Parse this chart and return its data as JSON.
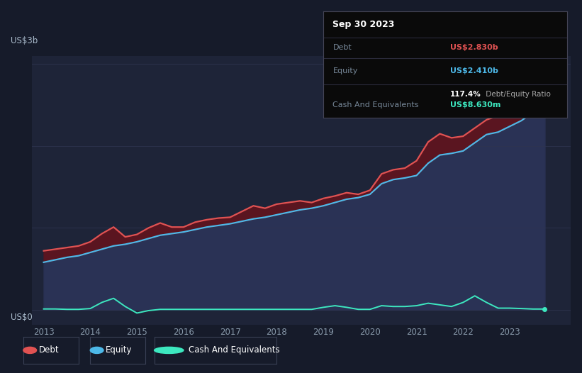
{
  "bg_color": "#161b2a",
  "plot_bg_color": "#1e2438",
  "grid_color": "#2e3450",
  "y_label": "US$3b",
  "y_label_zero": "US$0",
  "x_ticks": [
    "2013",
    "2014",
    "2015",
    "2016",
    "2017",
    "2018",
    "2019",
    "2020",
    "2021",
    "2022",
    "2023"
  ],
  "debt_color": "#e05252",
  "equity_color": "#4db8e8",
  "cash_color": "#3de8c0",
  "debt_fill_color": "#5a1520",
  "equity_fill_color": "#2a3255",
  "tooltip_title": "Sep 30 2023",
  "tooltip_debt_label": "Debt",
  "tooltip_debt": "US$2.830b",
  "tooltip_equity_label": "Equity",
  "tooltip_equity": "US$2.410b",
  "tooltip_ratio": "117.4%",
  "tooltip_ratio_text": " Debt/Equity Ratio",
  "tooltip_cash_label": "Cash And Equivalents",
  "tooltip_cash": "US$8.630m",
  "years": [
    2013.0,
    2013.25,
    2013.5,
    2013.75,
    2014.0,
    2014.25,
    2014.5,
    2014.75,
    2015.0,
    2015.25,
    2015.5,
    2015.75,
    2016.0,
    2016.25,
    2016.5,
    2016.75,
    2017.0,
    2017.25,
    2017.5,
    2017.75,
    2018.0,
    2018.25,
    2018.5,
    2018.75,
    2019.0,
    2019.25,
    2019.5,
    2019.75,
    2020.0,
    2020.25,
    2020.5,
    2020.75,
    2021.0,
    2021.25,
    2021.5,
    2021.75,
    2022.0,
    2022.25,
    2022.5,
    2022.75,
    2023.0,
    2023.25,
    2023.5,
    2023.75
  ],
  "debt": [
    0.72,
    0.74,
    0.76,
    0.78,
    0.83,
    0.93,
    1.01,
    0.89,
    0.92,
    1.0,
    1.06,
    1.01,
    1.01,
    1.07,
    1.1,
    1.12,
    1.13,
    1.2,
    1.27,
    1.24,
    1.29,
    1.31,
    1.33,
    1.31,
    1.36,
    1.39,
    1.43,
    1.41,
    1.46,
    1.66,
    1.71,
    1.73,
    1.82,
    2.05,
    2.15,
    2.1,
    2.12,
    2.22,
    2.32,
    2.37,
    2.62,
    2.78,
    2.83,
    2.83
  ],
  "equity": [
    0.58,
    0.61,
    0.64,
    0.66,
    0.7,
    0.74,
    0.78,
    0.8,
    0.83,
    0.87,
    0.91,
    0.93,
    0.95,
    0.98,
    1.01,
    1.03,
    1.05,
    1.08,
    1.11,
    1.13,
    1.16,
    1.19,
    1.22,
    1.24,
    1.27,
    1.31,
    1.35,
    1.37,
    1.41,
    1.54,
    1.59,
    1.61,
    1.64,
    1.79,
    1.89,
    1.91,
    1.94,
    2.04,
    2.14,
    2.17,
    2.24,
    2.31,
    2.41,
    2.41
  ],
  "cash": [
    0.01,
    0.01,
    0.005,
    0.005,
    0.015,
    0.09,
    0.14,
    0.04,
    -0.04,
    -0.01,
    0.005,
    0.005,
    0.005,
    0.005,
    0.005,
    0.005,
    0.005,
    0.005,
    0.005,
    0.005,
    0.005,
    0.005,
    0.005,
    0.005,
    0.03,
    0.05,
    0.03,
    0.005,
    0.005,
    0.05,
    0.04,
    0.04,
    0.05,
    0.08,
    0.06,
    0.04,
    0.09,
    0.17,
    0.09,
    0.02,
    0.02,
    0.015,
    0.009,
    0.009
  ],
  "legend_items": [
    {
      "color": "#e05252",
      "label": "Debt"
    },
    {
      "color": "#4db8e8",
      "label": "Equity"
    },
    {
      "color": "#3de8c0",
      "label": "Cash And Equivalents"
    }
  ]
}
